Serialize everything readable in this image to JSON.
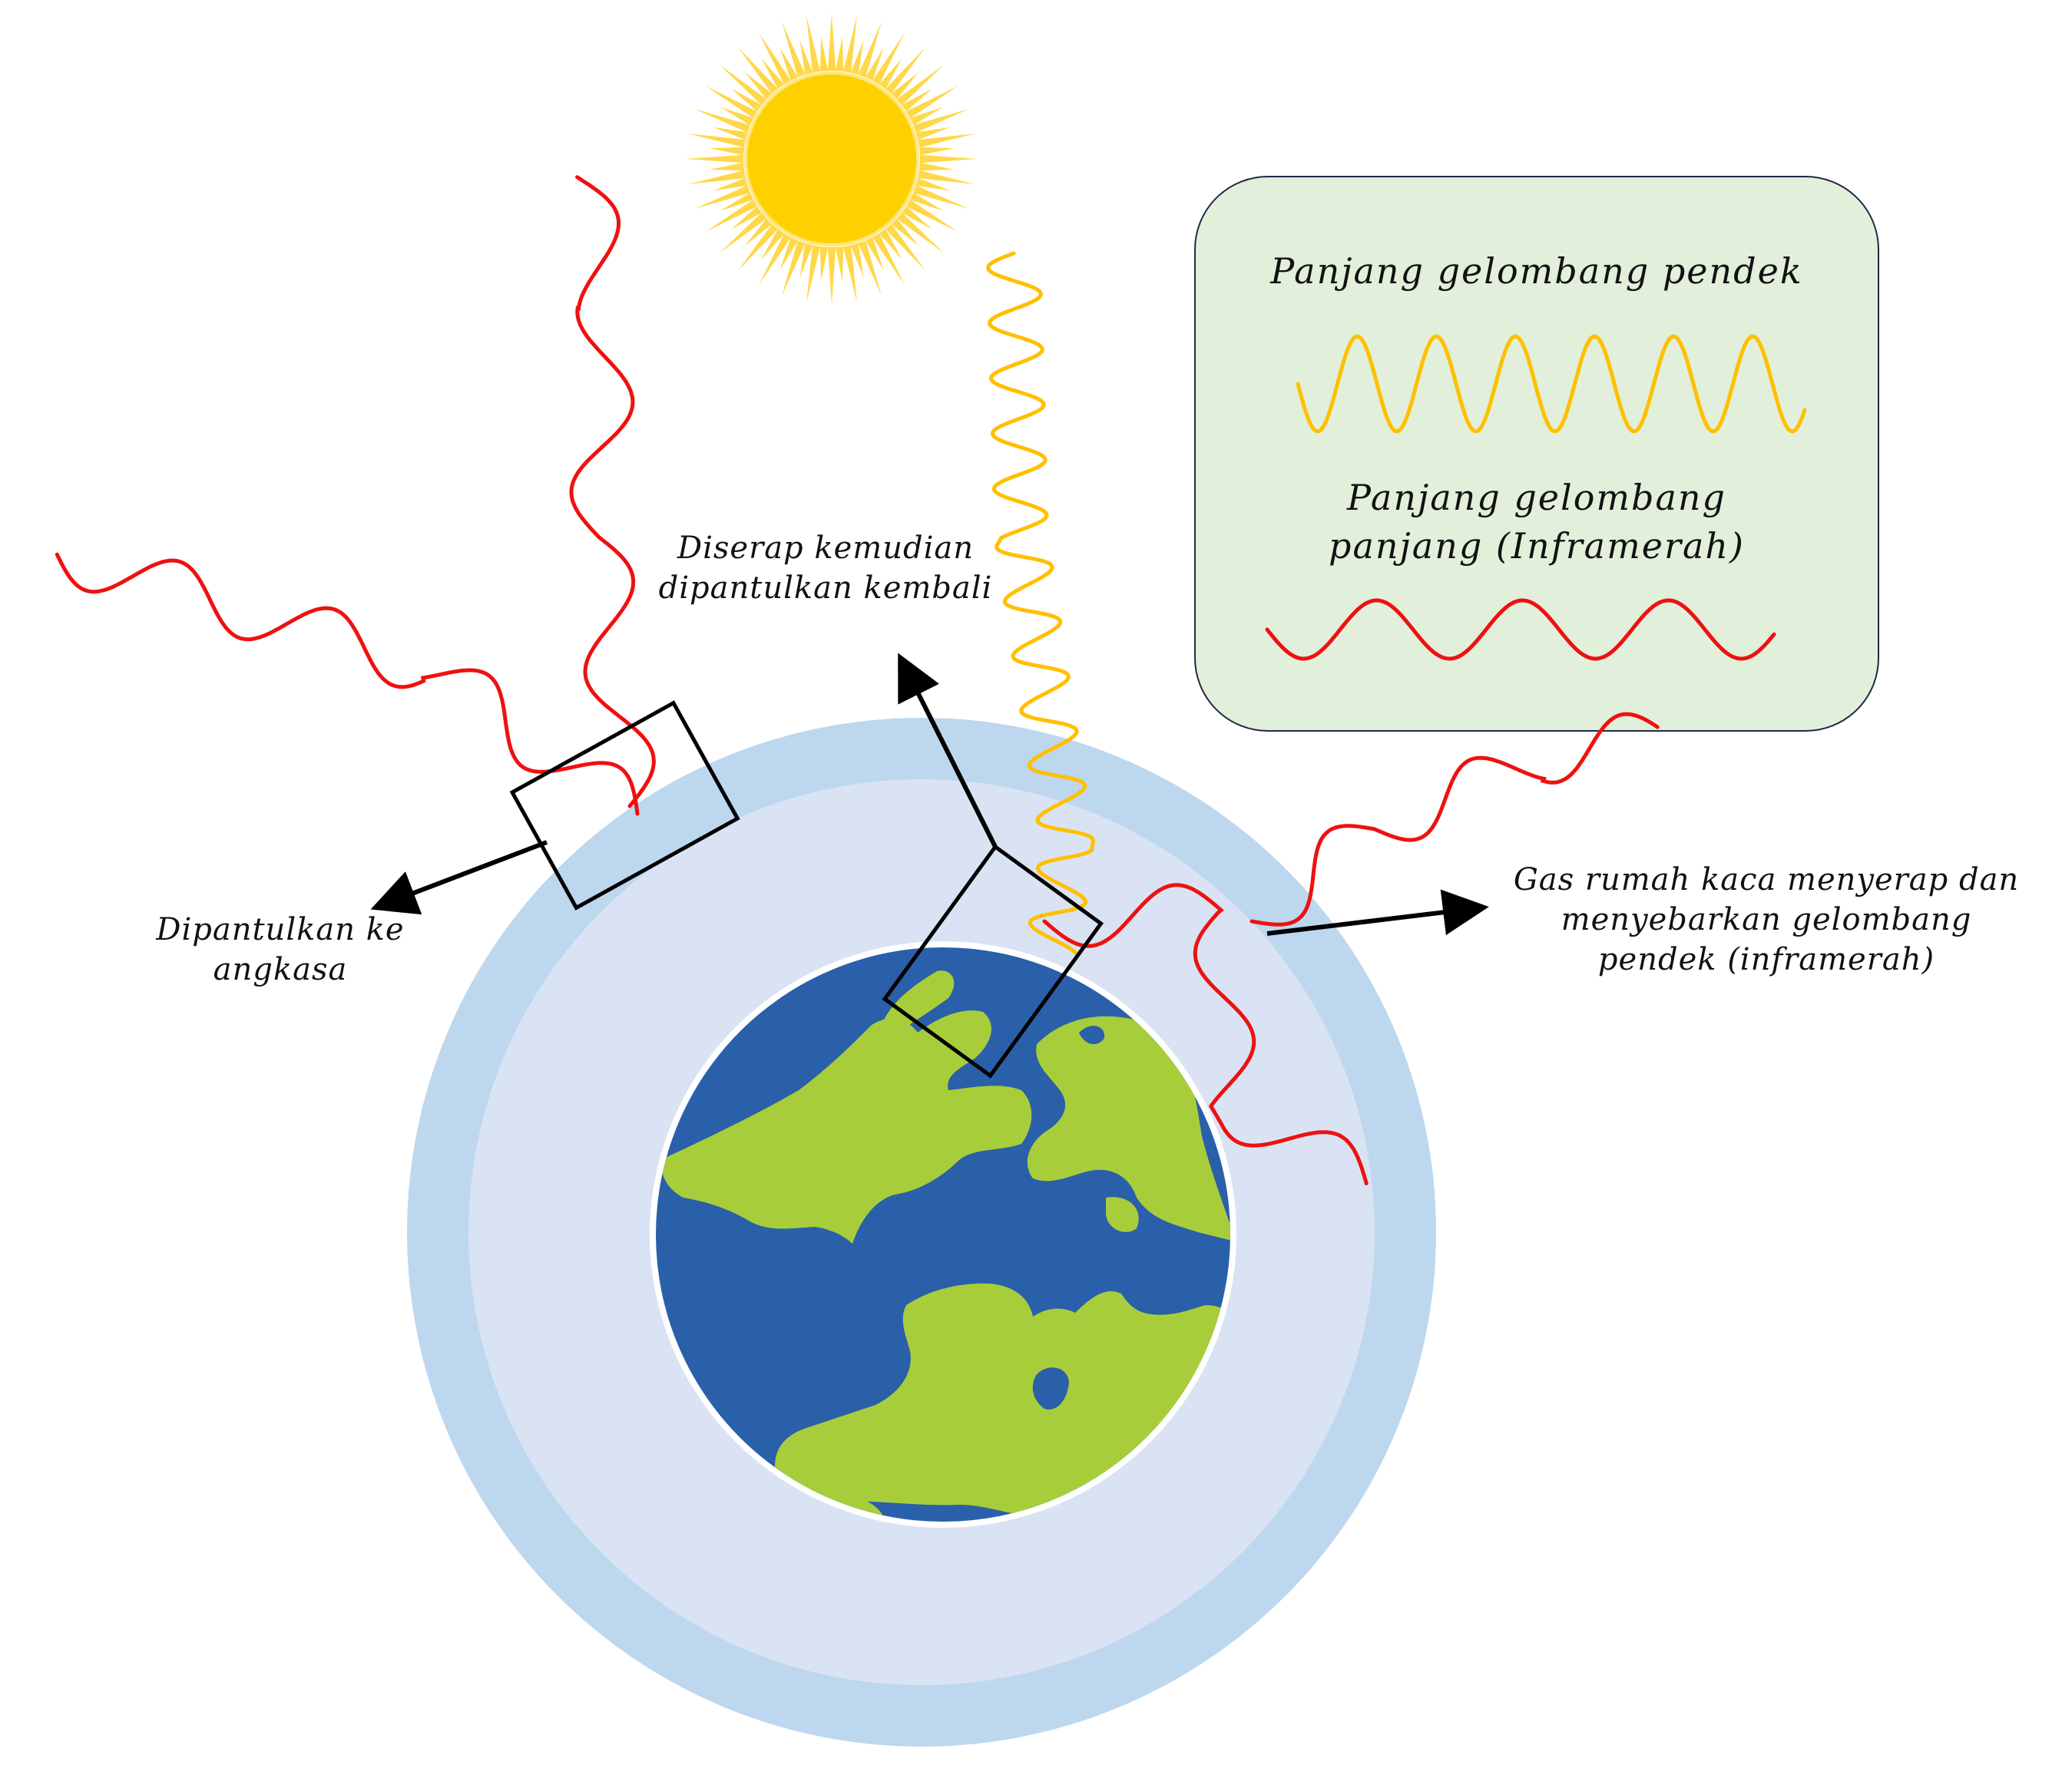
{
  "colors": {
    "background": "#ffffff",
    "sun": "#FFD000",
    "sun_rays": "#FFD84A",
    "shortwave": "#FFC000",
    "infrared": "#EE1111",
    "atmosphere_outer": "#BDD7EE",
    "atmosphere_inner": "#DAE3F3",
    "ocean": "#2A5FAA",
    "land": "#A8CD3A",
    "legend_fill": "#E2EFDA",
    "legend_border": "#1F2A44",
    "arrow": "#000000"
  },
  "labels": {
    "reflected": [
      "Dipantulkan ke",
      "angkasa"
    ],
    "absorbed": [
      "Diserap kemudian",
      "dipantulkan kembali"
    ],
    "greenhouse": [
      "Gas rumah kaca menyerap dan",
      "menyebarkan gelombang",
      "pendek (inframerah)"
    ]
  },
  "legend": {
    "short_wave": "Panjang gelombang pendek",
    "long_wave": [
      "Panjang gelombang",
      "panjang (Inframerah)"
    ]
  },
  "icons": [
    "sun-icon",
    "earth-globe-icon"
  ]
}
